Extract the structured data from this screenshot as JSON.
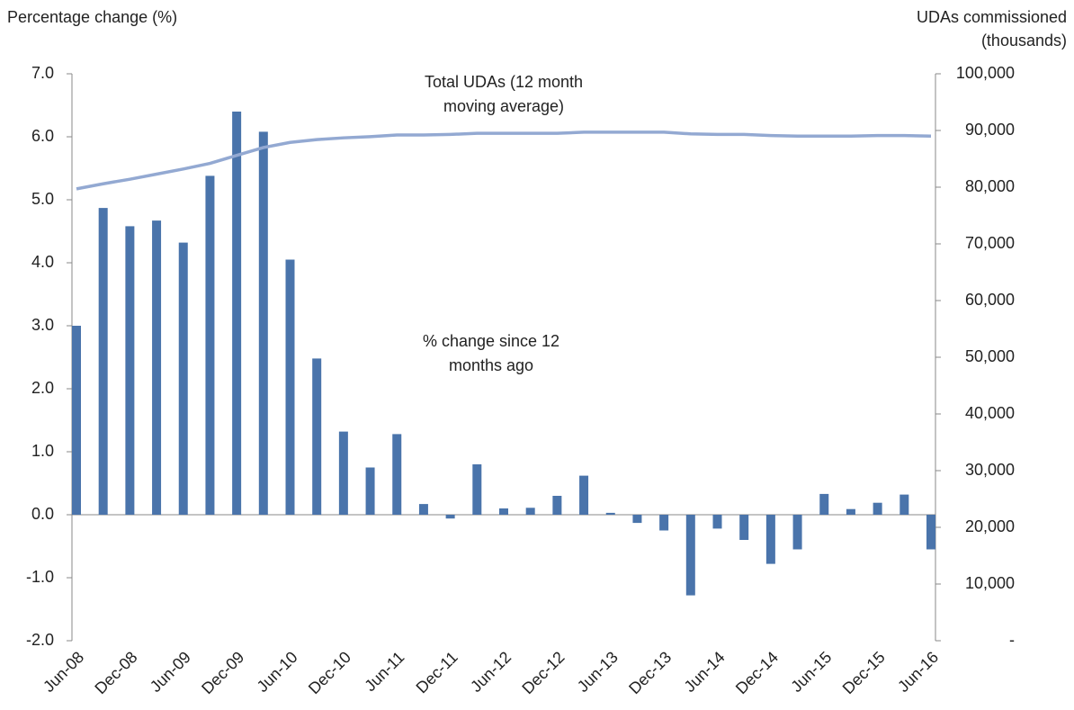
{
  "chart_data": {
    "type": "bar",
    "ylabel": "Percentage change (%)",
    "y2label": [
      "UDAs commissioned",
      "(thousands)"
    ],
    "annotations": [
      {
        "lines": [
          "Total UDAs (12 month",
          "moving average)"
        ]
      },
      {
        "lines": [
          "% change since 12",
          "months ago"
        ]
      }
    ],
    "categories": [
      "Jun-08",
      null,
      "Dec-08",
      null,
      "Jun-09",
      null,
      "Dec-09",
      null,
      "Jun-10",
      null,
      "Dec-10",
      null,
      "Jun-11",
      null,
      "Dec-11",
      null,
      "Jun-12",
      null,
      "Dec-12",
      null,
      "Jun-13",
      null,
      "Dec-13",
      null,
      "Jun-14",
      null,
      "Dec-14",
      null,
      "Jun-15",
      null,
      "Dec-15",
      null,
      "Jun-16"
    ],
    "series": [
      {
        "type": "bar",
        "color": "#4a74ab",
        "values": [
          3.0,
          4.87,
          4.58,
          4.67,
          4.32,
          5.38,
          6.4,
          6.08,
          4.05,
          2.48,
          1.32,
          0.75,
          1.28,
          0.17,
          -0.06,
          0.8,
          0.1,
          0.11,
          0.3,
          0.62,
          0.03,
          -0.13,
          -0.25,
          -1.28,
          -0.22,
          -0.4,
          -0.78,
          -0.55,
          0.33,
          0.09,
          0.19,
          0.32,
          -0.55
        ]
      },
      {
        "type": "line",
        "axis": "y2",
        "color": "#93a9d2",
        "values": [
          79700,
          80600,
          81400,
          82300,
          83200,
          84200,
          85600,
          87000,
          87900,
          88400,
          88700,
          88900,
          89200,
          89200,
          89300,
          89500,
          89500,
          89500,
          89500,
          89700,
          89700,
          89700,
          89700,
          89400,
          89300,
          89300,
          89100,
          89000,
          89000,
          89000,
          89100,
          89100,
          89000
        ]
      }
    ],
    "ylim": [
      -2,
      7
    ],
    "yticks": [
      {
        "value": -2,
        "label": "-2.0"
      },
      {
        "value": -1,
        "label": "-1.0"
      },
      {
        "value": 0,
        "label": "0.0"
      },
      {
        "value": 1,
        "label": "1.0"
      },
      {
        "value": 2,
        "label": "2.0"
      },
      {
        "value": 3,
        "label": "3.0"
      },
      {
        "value": 4,
        "label": "4.0"
      },
      {
        "value": 5,
        "label": "5.0"
      },
      {
        "value": 6,
        "label": "6.0"
      },
      {
        "value": 7,
        "label": "7.0"
      }
    ],
    "y2lim": [
      0,
      100000
    ],
    "y2ticks": [
      {
        "value": 0,
        "label": "-"
      },
      {
        "value": 10000,
        "label": "10,000"
      },
      {
        "value": 20000,
        "label": "20,000"
      },
      {
        "value": 30000,
        "label": "30,000"
      },
      {
        "value": 40000,
        "label": "40,000"
      },
      {
        "value": 50000,
        "label": "50,000"
      },
      {
        "value": 60000,
        "label": "60,000"
      },
      {
        "value": 70000,
        "label": "70,000"
      },
      {
        "value": 80000,
        "label": "80,000"
      },
      {
        "value": 90000,
        "label": "90,000"
      },
      {
        "value": 100000,
        "label": "100,000"
      }
    ],
    "grid": false
  }
}
